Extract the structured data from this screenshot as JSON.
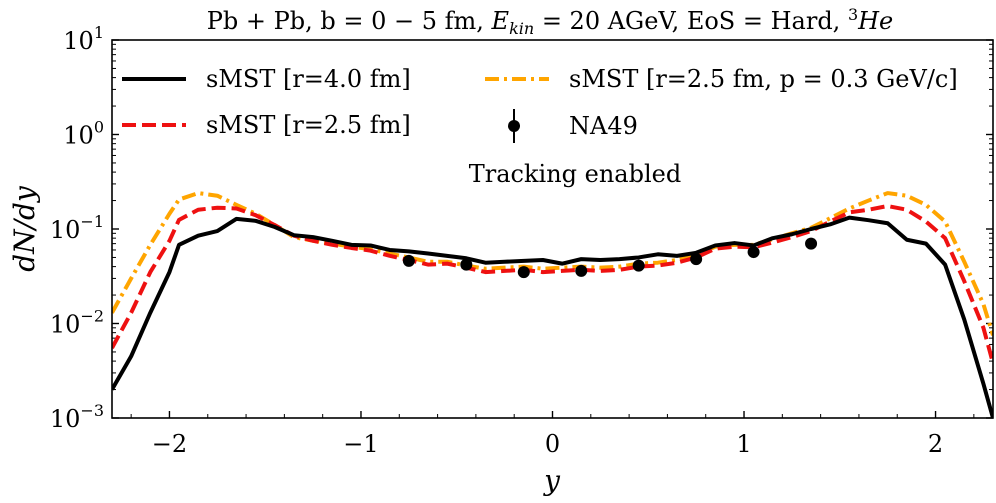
{
  "chart_data": {
    "type": "line",
    "title_prefix": "Pb + Pb, b = 0 − 5 fm, ",
    "title_ekin": "E",
    "title_ekin_sub": "kin",
    "title_middle": " = 20 AGeV, EoS = Hard, ",
    "title_nucleus_mass": "3",
    "title_nucleus": "He",
    "xlabel": "y",
    "ylabel": "dN/dy",
    "yscale": "log",
    "xlim": [
      -2.3,
      2.3
    ],
    "ylim": [
      0.001,
      10
    ],
    "x_ticks": [
      -2,
      -1,
      0,
      1,
      2
    ],
    "x_tick_labels": [
      "−2",
      "−1",
      "0",
      "1",
      "2"
    ],
    "y_ticks": [
      0.001,
      0.01,
      0.1,
      1,
      10
    ],
    "y_tick_base": "10",
    "y_tick_exponents": [
      "−3",
      "−2",
      "−1",
      "0",
      "1"
    ],
    "annotation": "Tracking enabled",
    "series": [
      {
        "name": "sMST [r=4.0 fm]",
        "color": "#000000",
        "style": "solid",
        "x": [
          -2.3,
          -2.2,
          -2.1,
          -2.0,
          -1.95,
          -1.85,
          -1.75,
          -1.65,
          -1.55,
          -1.45,
          -1.35,
          -1.25,
          -1.15,
          -1.05,
          -0.95,
          -0.85,
          -0.75,
          -0.65,
          -0.55,
          -0.45,
          -0.35,
          -0.25,
          -0.15,
          -0.05,
          0.05,
          0.15,
          0.25,
          0.35,
          0.45,
          0.55,
          0.65,
          0.75,
          0.85,
          0.95,
          1.05,
          1.15,
          1.25,
          1.35,
          1.45,
          1.55,
          1.65,
          1.75,
          1.85,
          1.95,
          2.05,
          2.15,
          2.25,
          2.3
        ],
        "y": [
          0.002,
          0.0045,
          0.013,
          0.035,
          0.068,
          0.085,
          0.095,
          0.128,
          0.122,
          0.105,
          0.086,
          0.082,
          0.075,
          0.068,
          0.067,
          0.06,
          0.058,
          0.055,
          0.052,
          0.049,
          0.044,
          0.045,
          0.046,
          0.047,
          0.043,
          0.048,
          0.047,
          0.048,
          0.05,
          0.054,
          0.052,
          0.056,
          0.067,
          0.071,
          0.067,
          0.08,
          0.088,
          0.1,
          0.112,
          0.132,
          0.124,
          0.115,
          0.077,
          0.07,
          0.042,
          0.011,
          0.0023,
          0.001
        ]
      },
      {
        "name": "sMST [r=2.5 fm]",
        "color": "#ee1111",
        "style": "dashed",
        "x": [
          -2.3,
          -2.2,
          -2.1,
          -2.0,
          -1.95,
          -1.85,
          -1.75,
          -1.65,
          -1.55,
          -1.45,
          -1.35,
          -1.25,
          -1.15,
          -1.05,
          -0.95,
          -0.85,
          -0.75,
          -0.65,
          -0.55,
          -0.45,
          -0.35,
          -0.25,
          -0.15,
          -0.05,
          0.05,
          0.15,
          0.25,
          0.35,
          0.45,
          0.55,
          0.65,
          0.75,
          0.85,
          0.95,
          1.05,
          1.15,
          1.25,
          1.35,
          1.45,
          1.55,
          1.65,
          1.75,
          1.85,
          1.95,
          2.05,
          2.15,
          2.25,
          2.3
        ],
        "y": [
          0.0055,
          0.013,
          0.035,
          0.075,
          0.125,
          0.16,
          0.168,
          0.165,
          0.14,
          0.11,
          0.085,
          0.075,
          0.068,
          0.063,
          0.059,
          0.052,
          0.047,
          0.042,
          0.043,
          0.039,
          0.035,
          0.036,
          0.037,
          0.035,
          0.036,
          0.037,
          0.036,
          0.037,
          0.04,
          0.041,
          0.044,
          0.05,
          0.062,
          0.065,
          0.064,
          0.072,
          0.082,
          0.095,
          0.12,
          0.15,
          0.16,
          0.175,
          0.16,
          0.12,
          0.08,
          0.028,
          0.009,
          0.0038
        ]
      },
      {
        "name": "sMST [r=2.5 fm, p = 0.3 GeV/c]",
        "color": "#ffa500",
        "style": "dashdot",
        "x": [
          -2.3,
          -2.2,
          -2.1,
          -2.0,
          -1.95,
          -1.85,
          -1.75,
          -1.65,
          -1.55,
          -1.45,
          -1.35,
          -1.25,
          -1.15,
          -1.05,
          -0.95,
          -0.85,
          -0.75,
          -0.65,
          -0.55,
          -0.45,
          -0.35,
          -0.25,
          -0.15,
          -0.05,
          0.05,
          0.15,
          0.25,
          0.35,
          0.45,
          0.55,
          0.65,
          0.75,
          0.85,
          0.95,
          1.05,
          1.15,
          1.25,
          1.35,
          1.45,
          1.55,
          1.65,
          1.75,
          1.85,
          1.95,
          2.05,
          2.15,
          2.25,
          2.3
        ],
        "y": [
          0.013,
          0.03,
          0.068,
          0.145,
          0.205,
          0.24,
          0.225,
          0.18,
          0.145,
          0.11,
          0.082,
          0.075,
          0.07,
          0.065,
          0.061,
          0.055,
          0.05,
          0.045,
          0.045,
          0.041,
          0.038,
          0.039,
          0.04,
          0.038,
          0.039,
          0.04,
          0.039,
          0.04,
          0.043,
          0.044,
          0.047,
          0.053,
          0.065,
          0.068,
          0.068,
          0.078,
          0.09,
          0.103,
          0.13,
          0.165,
          0.2,
          0.24,
          0.225,
          0.18,
          0.12,
          0.045,
          0.016,
          0.0075
        ]
      },
      {
        "name": "NA49",
        "color": "#000000",
        "style": "markers",
        "x": [
          -0.75,
          -0.45,
          -0.15,
          0.15,
          0.45,
          0.75,
          1.05,
          1.35
        ],
        "y": [
          0.046,
          0.042,
          0.035,
          0.036,
          0.041,
          0.048,
          0.057,
          0.07
        ]
      }
    ]
  }
}
